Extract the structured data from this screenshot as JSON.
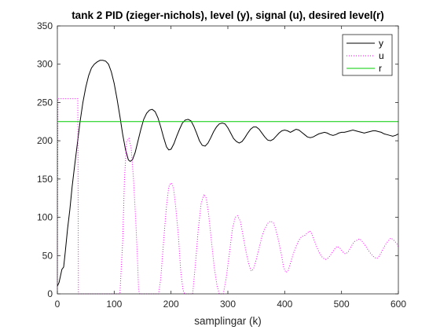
{
  "chart_data": {
    "type": "line",
    "title": "tank 2 PID (zieger-nichols), level (y), signal (u), desired level(r)",
    "xlabel": "samplingar (k)",
    "ylabel": "",
    "xlim": [
      0,
      600
    ],
    "ylim": [
      0,
      350
    ],
    "xticks": [
      0,
      100,
      200,
      300,
      400,
      500,
      600
    ],
    "yticks": [
      0,
      50,
      100,
      150,
      200,
      250,
      300,
      350
    ],
    "grid": false,
    "legend_position": "top-right",
    "series": [
      {
        "name": "y",
        "color": "#000000",
        "style": "solid",
        "points": [
          [
            0,
            10
          ],
          [
            3,
            15
          ],
          [
            6,
            25
          ],
          [
            8,
            32
          ],
          [
            11,
            35
          ],
          [
            14,
            55
          ],
          [
            18,
            85
          ],
          [
            22,
            110
          ],
          [
            26,
            140
          ],
          [
            30,
            165
          ],
          [
            35,
            195
          ],
          [
            40,
            225
          ],
          [
            45,
            250
          ],
          [
            50,
            270
          ],
          [
            55,
            285
          ],
          [
            60,
            295
          ],
          [
            65,
            300
          ],
          [
            70,
            303
          ],
          [
            75,
            305
          ],
          [
            80,
            305
          ],
          [
            85,
            304
          ],
          [
            90,
            300
          ],
          [
            95,
            290
          ],
          [
            100,
            275
          ],
          [
            105,
            255
          ],
          [
            110,
            232
          ],
          [
            115,
            208
          ],
          [
            120,
            188
          ],
          [
            125,
            175
          ],
          [
            128,
            173
          ],
          [
            132,
            175
          ],
          [
            137,
            185
          ],
          [
            142,
            200
          ],
          [
            147,
            215
          ],
          [
            152,
            228
          ],
          [
            157,
            236
          ],
          [
            162,
            240
          ],
          [
            167,
            241
          ],
          [
            172,
            238
          ],
          [
            177,
            230
          ],
          [
            182,
            218
          ],
          [
            187,
            204
          ],
          [
            192,
            192
          ],
          [
            196,
            188
          ],
          [
            200,
            189
          ],
          [
            205,
            196
          ],
          [
            210,
            206
          ],
          [
            215,
            215
          ],
          [
            220,
            223
          ],
          [
            225,
            227
          ],
          [
            230,
            228
          ],
          [
            235,
            226
          ],
          [
            240,
            219
          ],
          [
            245,
            210
          ],
          [
            250,
            200
          ],
          [
            255,
            194
          ],
          [
            260,
            193
          ],
          [
            265,
            197
          ],
          [
            270,
            204
          ],
          [
            275,
            212
          ],
          [
            280,
            218
          ],
          [
            285,
            222
          ],
          [
            290,
            223
          ],
          [
            295,
            222
          ],
          [
            300,
            217
          ],
          [
            305,
            210
          ],
          [
            310,
            203
          ],
          [
            315,
            199
          ],
          [
            320,
            197
          ],
          [
            325,
            199
          ],
          [
            330,
            204
          ],
          [
            335,
            210
          ],
          [
            340,
            215
          ],
          [
            345,
            218
          ],
          [
            350,
            218
          ],
          [
            355,
            215
          ],
          [
            360,
            210
          ],
          [
            365,
            205
          ],
          [
            370,
            201
          ],
          [
            375,
            200
          ],
          [
            380,
            202
          ],
          [
            385,
            206
          ],
          [
            390,
            210
          ],
          [
            395,
            213
          ],
          [
            400,
            214
          ],
          [
            405,
            213
          ],
          [
            410,
            211
          ],
          [
            415,
            213
          ],
          [
            420,
            215
          ],
          [
            425,
            214
          ],
          [
            430,
            211
          ],
          [
            435,
            208
          ],
          [
            440,
            205
          ],
          [
            445,
            204
          ],
          [
            450,
            205
          ],
          [
            455,
            207
          ],
          [
            460,
            209
          ],
          [
            465,
            210
          ],
          [
            470,
            211
          ],
          [
            475,
            210
          ],
          [
            480,
            208
          ],
          [
            485,
            207
          ],
          [
            490,
            208
          ],
          [
            495,
            210
          ],
          [
            500,
            211
          ],
          [
            505,
            211
          ],
          [
            510,
            212
          ],
          [
            515,
            213
          ],
          [
            520,
            214
          ],
          [
            525,
            213
          ],
          [
            530,
            212
          ],
          [
            535,
            211
          ],
          [
            540,
            210
          ],
          [
            545,
            211
          ],
          [
            550,
            212
          ],
          [
            555,
            213
          ],
          [
            560,
            213
          ],
          [
            565,
            212
          ],
          [
            570,
            211
          ],
          [
            575,
            209
          ],
          [
            580,
            208
          ],
          [
            585,
            207
          ],
          [
            590,
            206
          ],
          [
            595,
            207
          ],
          [
            600,
            209
          ]
        ]
      },
      {
        "name": "u",
        "color": "#ff00ff",
        "style": "dotted",
        "points": [
          [
            0,
            0
          ],
          [
            1,
            255
          ],
          [
            36,
            255
          ],
          [
            37,
            0
          ],
          [
            110,
            0
          ],
          [
            115,
            70
          ],
          [
            118,
            150
          ],
          [
            122,
            200
          ],
          [
            126,
            203
          ],
          [
            130,
            190
          ],
          [
            134,
            150
          ],
          [
            138,
            95
          ],
          [
            141,
            45
          ],
          [
            143,
            5
          ],
          [
            145,
            0
          ],
          [
            178,
            0
          ],
          [
            182,
            20
          ],
          [
            187,
            70
          ],
          [
            192,
            115
          ],
          [
            196,
            140
          ],
          [
            200,
            145
          ],
          [
            204,
            140
          ],
          [
            208,
            115
          ],
          [
            213,
            75
          ],
          [
            217,
            30
          ],
          [
            221,
            5
          ],
          [
            224,
            0
          ],
          [
            238,
            0
          ],
          [
            243,
            40
          ],
          [
            248,
            85
          ],
          [
            253,
            118
          ],
          [
            258,
            130
          ],
          [
            262,
            125
          ],
          [
            266,
            105
          ],
          [
            271,
            70
          ],
          [
            276,
            35
          ],
          [
            281,
            10
          ],
          [
            285,
            0
          ],
          [
            292,
            0
          ],
          [
            297,
            20
          ],
          [
            303,
            55
          ],
          [
            308,
            85
          ],
          [
            313,
            100
          ],
          [
            317,
            102
          ],
          [
            322,
            95
          ],
          [
            327,
            75
          ],
          [
            332,
            55
          ],
          [
            337,
            38
          ],
          [
            341,
            30
          ],
          [
            345,
            32
          ],
          [
            350,
            45
          ],
          [
            355,
            60
          ],
          [
            360,
            75
          ],
          [
            365,
            85
          ],
          [
            370,
            92
          ],
          [
            375,
            95
          ],
          [
            380,
            93
          ],
          [
            384,
            85
          ],
          [
            389,
            70
          ],
          [
            394,
            52
          ],
          [
            398,
            35
          ],
          [
            402,
            28
          ],
          [
            406,
            30
          ],
          [
            410,
            40
          ],
          [
            415,
            52
          ],
          [
            420,
            62
          ],
          [
            425,
            70
          ],
          [
            430,
            75
          ],
          [
            435,
            76
          ],
          [
            440,
            80
          ],
          [
            444,
            82
          ],
          [
            448,
            78
          ],
          [
            452,
            70
          ],
          [
            457,
            60
          ],
          [
            462,
            52
          ],
          [
            467,
            47
          ],
          [
            472,
            45
          ],
          [
            477,
            47
          ],
          [
            482,
            52
          ],
          [
            487,
            58
          ],
          [
            492,
            62
          ],
          [
            497,
            60
          ],
          [
            502,
            55
          ],
          [
            507,
            52
          ],
          [
            512,
            55
          ],
          [
            517,
            62
          ],
          [
            522,
            68
          ],
          [
            527,
            70
          ],
          [
            532,
            72
          ],
          [
            537,
            68
          ],
          [
            542,
            63
          ],
          [
            547,
            57
          ],
          [
            552,
            52
          ],
          [
            557,
            48
          ],
          [
            562,
            46
          ],
          [
            567,
            50
          ],
          [
            572,
            57
          ],
          [
            577,
            64
          ],
          [
            582,
            69
          ],
          [
            587,
            73
          ],
          [
            592,
            70
          ],
          [
            597,
            66
          ],
          [
            600,
            62
          ]
        ]
      },
      {
        "name": "r",
        "color": "#00cc00",
        "style": "solid",
        "points": [
          [
            0,
            225
          ],
          [
            600,
            225
          ]
        ]
      }
    ]
  }
}
